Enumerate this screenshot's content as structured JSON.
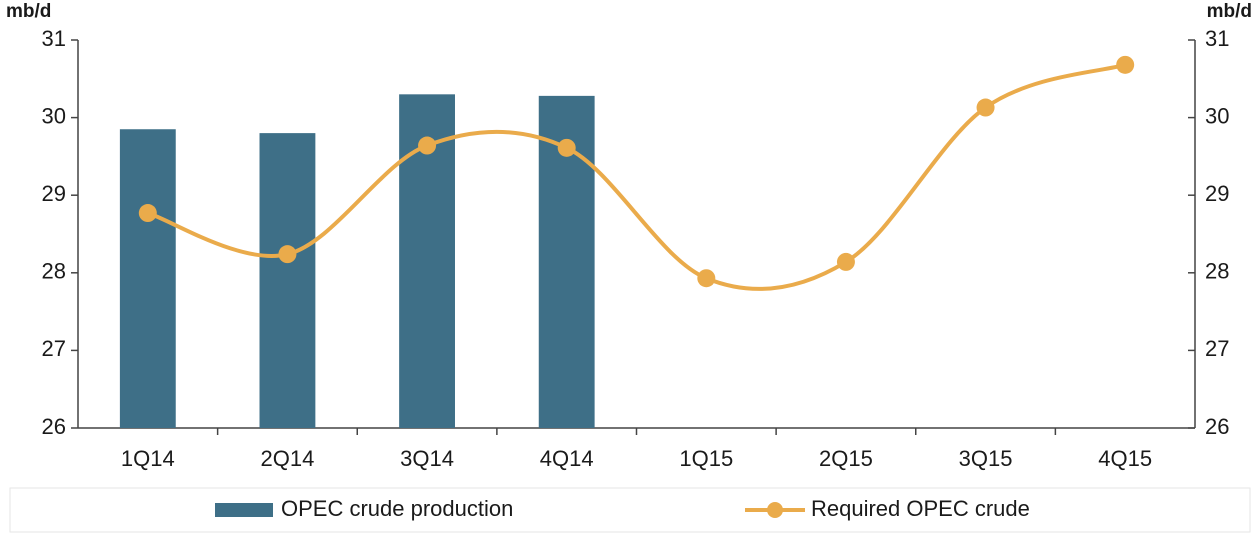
{
  "chart_data": {
    "type": "bar_line",
    "y_label": "mb/d",
    "y2_label": "mb/d",
    "categories": [
      "1Q14",
      "2Q14",
      "3Q14",
      "4Q14",
      "1Q15",
      "2Q15",
      "3Q15",
      "4Q15"
    ],
    "series": [
      {
        "name": "OPEC crude production",
        "type": "bar",
        "color": "#3e6f87",
        "values": [
          29.85,
          29.8,
          30.3,
          30.28,
          null,
          null,
          null,
          null
        ]
      },
      {
        "name": "Required OPEC crude",
        "type": "line",
        "axis": "y2",
        "color": "#eaab4b",
        "values": [
          28.77,
          28.24,
          29.64,
          29.61,
          27.93,
          28.14,
          30.13,
          30.68
        ]
      }
    ],
    "ylim": [
      26,
      31
    ],
    "yticks": [
      26,
      27,
      28,
      29,
      30,
      31
    ],
    "y2lim": [
      26,
      31
    ],
    "y2ticks": [
      26,
      27,
      28,
      29,
      30,
      31
    ]
  }
}
